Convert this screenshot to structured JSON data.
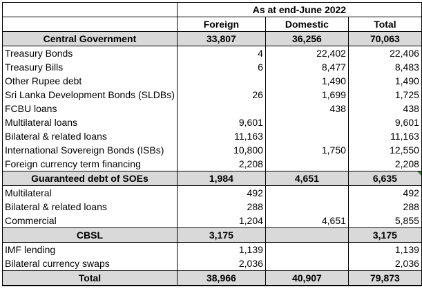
{
  "title": "As at end-June 2022",
  "columns": [
    "",
    "Foreign",
    "Domestic",
    "Total"
  ],
  "sections": [
    {
      "name": "Central Government",
      "foreign": "33,807",
      "domestic": "36,256",
      "total": "70,063",
      "rows": [
        {
          "label": "Treasury Bonds",
          "foreign": "4",
          "domestic": "22,402",
          "total": "22,406"
        },
        {
          "label": "Treasury Bills",
          "foreign": "6",
          "domestic": "8,477",
          "total": "8,483"
        },
        {
          "label": "Other Rupee debt",
          "foreign": "",
          "domestic": "1,490",
          "total": "1,490"
        },
        {
          "label": "Sri Lanka Development Bonds (SLDBs)",
          "foreign": "26",
          "domestic": "1,699",
          "total": "1,725"
        },
        {
          "label": "FCBU loans",
          "foreign": "",
          "domestic": "438",
          "total": "438"
        },
        {
          "label": "Multilateral loans",
          "foreign": "9,601",
          "domestic": "",
          "total": "9,601"
        },
        {
          "label": "Bilateral & related loans",
          "foreign": "11,163",
          "domestic": "",
          "total": "11,163"
        },
        {
          "label": "International Sovereign Bonds (ISBs)",
          "foreign": "10,800",
          "domestic": "1,750",
          "total": "12,550"
        },
        {
          "label": "Foreign currency term financing",
          "foreign": "2,208",
          "domestic": "",
          "total": "2,208"
        }
      ]
    },
    {
      "name": "Guaranteed debt of SOEs",
      "foreign": "1,984",
      "domestic": "4,651",
      "total": "6,635",
      "rows": [
        {
          "label": "Multilateral",
          "foreign": "492",
          "domestic": "",
          "total": "492"
        },
        {
          "label": "Bilateral & related loans",
          "foreign": "288",
          "domestic": "",
          "total": "288"
        },
        {
          "label": "Commercial",
          "foreign": "1,204",
          "domestic": "4,651",
          "total": "5,855"
        }
      ]
    },
    {
      "name": "CBSL",
      "foreign": "3,175",
      "domestic": "",
      "total": "3,175",
      "rows": [
        {
          "label": "IMF lending",
          "foreign": "1,139",
          "domestic": "",
          "total": "1,139"
        },
        {
          "label": "Bilateral currency swaps",
          "foreign": "2,036",
          "domestic": "",
          "total": "2,036"
        }
      ]
    }
  ],
  "total": {
    "label": "Total",
    "foreign": "38,966",
    "domestic": "40,907",
    "total": "79,873"
  }
}
